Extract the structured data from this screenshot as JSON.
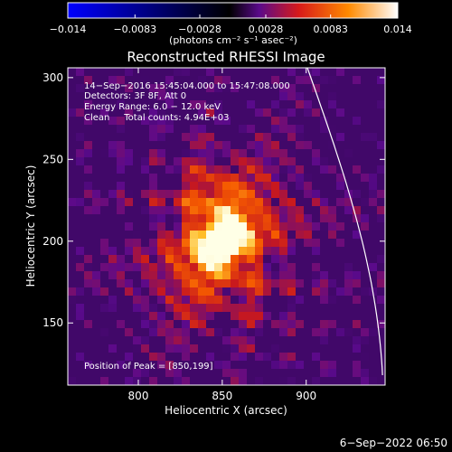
{
  "chart_data": {
    "type": "heatmap",
    "title": "Reconstructed RHESSI Image",
    "xlabel": "Heliocentric X (arcsec)",
    "ylabel": "Heliocentric Y (arcsec)",
    "xlim": [
      758,
      947
    ],
    "ylim": [
      112,
      306
    ],
    "x_ticks": [
      {
        "value": 800,
        "label": "800"
      },
      {
        "value": 850,
        "label": "850"
      },
      {
        "value": 900,
        "label": "900"
      }
    ],
    "y_ticks": [
      {
        "value": 150,
        "label": "150"
      },
      {
        "value": 200,
        "label": "200"
      },
      {
        "value": 250,
        "label": "250"
      },
      {
        "value": 300,
        "label": "300"
      }
    ],
    "peak": {
      "x": 850,
      "y": 199
    },
    "colorbar": {
      "min": -0.014,
      "max": 0.014,
      "ticks": [
        {
          "value": -0.014,
          "label": "−0.014"
        },
        {
          "value": -0.0083,
          "label": "−0.0083"
        },
        {
          "value": -0.0028,
          "label": "−0.0028"
        },
        {
          "value": 0.0028,
          "label": "0.0028"
        },
        {
          "value": 0.0083,
          "label": "0.0083"
        },
        {
          "value": 0.014,
          "label": "0.014"
        }
      ],
      "label": "(photons cm⁻² s⁻¹ asec⁻²)",
      "colors": [
        "#0000ff",
        "#000000",
        "#7a0a8c",
        "#e8201a",
        "#ff9a00",
        "#ffffff"
      ]
    },
    "annotations": {
      "line1": "14−Sep−2016 15:45:04.000 to 15:47:08.000",
      "line2": "Detectors: 3F 8F, Att 0",
      "line3": "Energy Range: 6.0 − 12.0 keV",
      "line4": "Clean     Total counts: 4.94E+03",
      "peak_label": "Position of Peak = [850,199]"
    },
    "date_stamp": "6−Sep−2022 06:50"
  }
}
